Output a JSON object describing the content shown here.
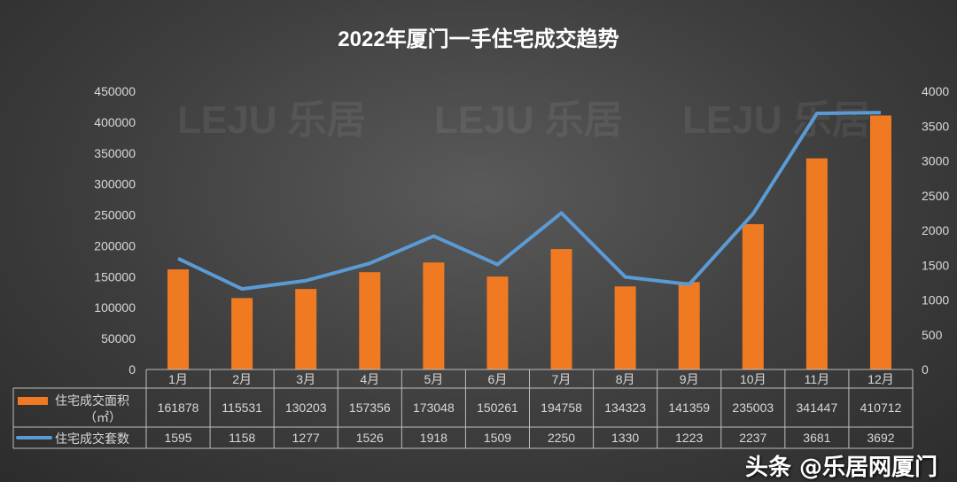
{
  "chart_data": {
    "type": "bar+line",
    "title": "2022年厦门一手住宅成交趋势",
    "categories": [
      "1月",
      "2月",
      "3月",
      "4月",
      "5月",
      "6月",
      "7月",
      "8月",
      "9月",
      "10月",
      "11月",
      "12月"
    ],
    "series": [
      {
        "name": "住宅成交面积（㎡）",
        "type": "bar",
        "axis": "left",
        "color": "#f07a22",
        "values": [
          161878,
          115531,
          130203,
          157356,
          173048,
          150261,
          194758,
          134323,
          141359,
          235003,
          341447,
          410712
        ]
      },
      {
        "name": "住宅成交套数",
        "type": "line",
        "axis": "right",
        "color": "#5b9bd5",
        "values": [
          1595,
          1158,
          1277,
          1526,
          1918,
          1509,
          2250,
          1330,
          1223,
          2237,
          3681,
          3692
        ]
      }
    ],
    "left_axis": {
      "ylim": [
        0,
        450000
      ],
      "ticks": [
        0,
        50000,
        100000,
        150000,
        200000,
        250000,
        300000,
        350000,
        400000,
        450000
      ]
    },
    "right_axis": {
      "ylim": [
        0,
        4000
      ],
      "ticks": [
        0,
        500,
        1000,
        1500,
        2000,
        2500,
        3000,
        3500,
        4000
      ]
    },
    "legend": "data-table",
    "grid": false
  },
  "watermark": "头条 @乐居网厦门",
  "logo_text": "LEJU 乐居"
}
